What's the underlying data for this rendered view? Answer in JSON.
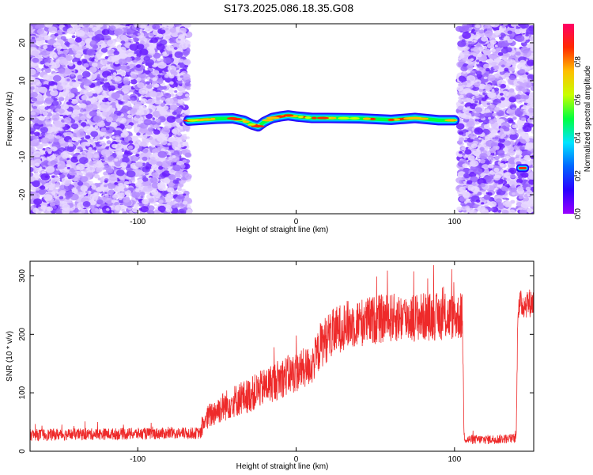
{
  "title": "S173.2025.086.18.35.G08",
  "chart_data": [
    {
      "type": "heatmap",
      "xlabel": "Height of straight line (km)",
      "ylabel": "Frequency (Hz)",
      "xlim": [
        -168,
        150
      ],
      "ylim": [
        -25,
        25
      ],
      "xticks": [
        -100,
        0,
        100
      ],
      "yticks": [
        -20,
        -10,
        0,
        10,
        20
      ],
      "colorbar": {
        "label": "Normalized spectral amplitude",
        "range": [
          0,
          1
        ],
        "ticks": [
          0.0,
          0.2,
          0.4,
          0.6,
          0.8
        ],
        "colors": [
          "#9900ff",
          "#2a00ff",
          "#0066ff",
          "#00e5ff",
          "#00ff40",
          "#c8ff00",
          "#ffbf00",
          "#ff2a00",
          "#ff0066"
        ]
      },
      "noise_regions_km": [
        [
          -168,
          -68
        ],
        [
          103,
          138
        ],
        [
          140,
          150
        ]
      ],
      "signal_track": {
        "x": [
          -68,
          -60,
          -50,
          -40,
          -33,
          -28,
          -24,
          -20,
          -15,
          -10,
          -5,
          0,
          10,
          20,
          40,
          60,
          75,
          90,
          100
        ],
        "y": [
          -0.5,
          -0.3,
          0.0,
          0.1,
          -0.5,
          -1.5,
          -2.0,
          -0.8,
          0.2,
          0.6,
          0.9,
          0.6,
          0.2,
          0.2,
          0.1,
          -0.3,
          0.2,
          -0.4,
          -0.4
        ]
      },
      "isolated_blob": {
        "x": [
          139,
          147
        ],
        "y": -13
      }
    },
    {
      "type": "line",
      "xlabel": "Height of straight line (km)",
      "ylabel": "SNR (10 * v/v)",
      "xlim": [
        -168,
        150
      ],
      "ylim": [
        0,
        325
      ],
      "xticks": [
        -100,
        0,
        100
      ],
      "yticks": [
        0,
        100,
        200,
        300
      ],
      "color": "#ee2a2a",
      "envelope": {
        "x": [
          -168,
          -100,
          -60,
          -59,
          -55,
          -50,
          -40,
          -30,
          -20,
          -10,
          0,
          10,
          12,
          14,
          15,
          20,
          25,
          30,
          40,
          50,
          60,
          80,
          100,
          105,
          106,
          107,
          120,
          138,
          139,
          140,
          150
        ],
        "mean": [
          28,
          30,
          31,
          45,
          60,
          70,
          85,
          95,
          110,
          125,
          135,
          148,
          160,
          170,
          180,
          195,
          205,
          215,
          220,
          225,
          228,
          230,
          230,
          230,
          30,
          20,
          20,
          22,
          25,
          250,
          255
        ],
        "spread": [
          10,
          10,
          10,
          18,
          22,
          25,
          28,
          30,
          32,
          35,
          35,
          35,
          35,
          38,
          40,
          42,
          42,
          42,
          42,
          42,
          42,
          42,
          40,
          40,
          8,
          8,
          8,
          8,
          10,
          25,
          25
        ]
      }
    }
  ]
}
